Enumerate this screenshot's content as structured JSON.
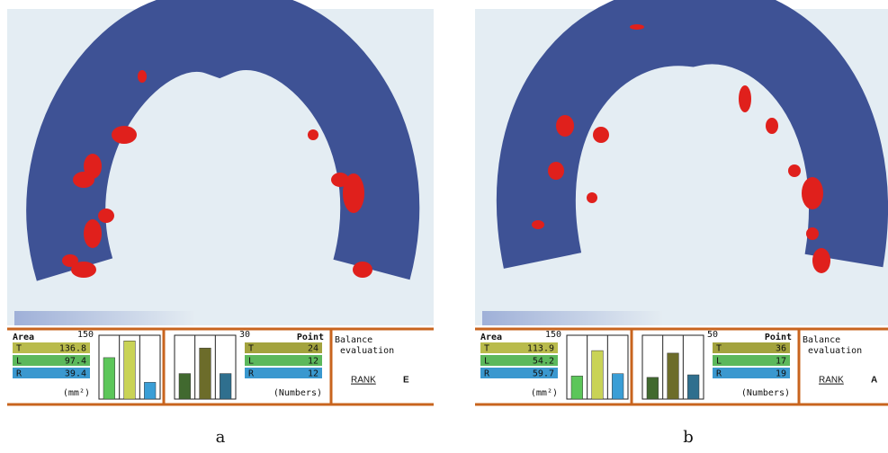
{
  "panels": [
    {
      "caption": "a",
      "area": {
        "label": "Area",
        "max": 150,
        "unit": "(mm²)",
        "rows": [
          {
            "key": "T",
            "value": 136.8,
            "color": "#b9bb4c",
            "bar_color": "#c9d356"
          },
          {
            "key": "L",
            "value": 97.4,
            "color": "#5cb85c",
            "bar_color": "#5cc65a"
          },
          {
            "key": "R",
            "value": 39.4,
            "color": "#3a98cf",
            "bar_color": "#3a9ed6"
          }
        ]
      },
      "point": {
        "label": "Point",
        "max": 30,
        "unit": "(Numbers)",
        "rows": [
          {
            "key": "T",
            "value": 24,
            "color": "#a3a33e",
            "bar_color": "#6c6c2a"
          },
          {
            "key": "L",
            "value": 12,
            "color": "#5cb85c",
            "bar_color": "#41692f"
          },
          {
            "key": "R",
            "value": 12,
            "color": "#3a98cf",
            "bar_color": "#2f6f8e"
          }
        ]
      },
      "balance": [
        "Balance",
        "evaluation"
      ],
      "rank": {
        "label": "RANK",
        "grade": "E",
        "color": "#e02a2a"
      }
    },
    {
      "caption": "b",
      "area": {
        "label": "Area",
        "max": 150,
        "unit": "(mm²)",
        "rows": [
          {
            "key": "T",
            "value": 113.9,
            "color": "#b9bb4c",
            "bar_color": "#c9d356"
          },
          {
            "key": "L",
            "value": 54.2,
            "color": "#5cb85c",
            "bar_color": "#5cc65a"
          },
          {
            "key": "R",
            "value": 59.7,
            "color": "#3a98cf",
            "bar_color": "#3a9ed6"
          }
        ]
      },
      "point": {
        "label": "Point",
        "max": 50,
        "unit": "(Numbers)",
        "rows": [
          {
            "key": "T",
            "value": 36,
            "color": "#a3a33e",
            "bar_color": "#6c6c2a"
          },
          {
            "key": "L",
            "value": 17,
            "color": "#5cb85c",
            "bar_color": "#41692f"
          },
          {
            "key": "R",
            "value": 19,
            "color": "#3a98cf",
            "bar_color": "#2f6f8e"
          }
        ]
      },
      "balance": [
        "Balance",
        "evaluation"
      ],
      "rank": {
        "label": "RANK",
        "grade": "A",
        "color": "#2a4fb0"
      }
    }
  ]
}
